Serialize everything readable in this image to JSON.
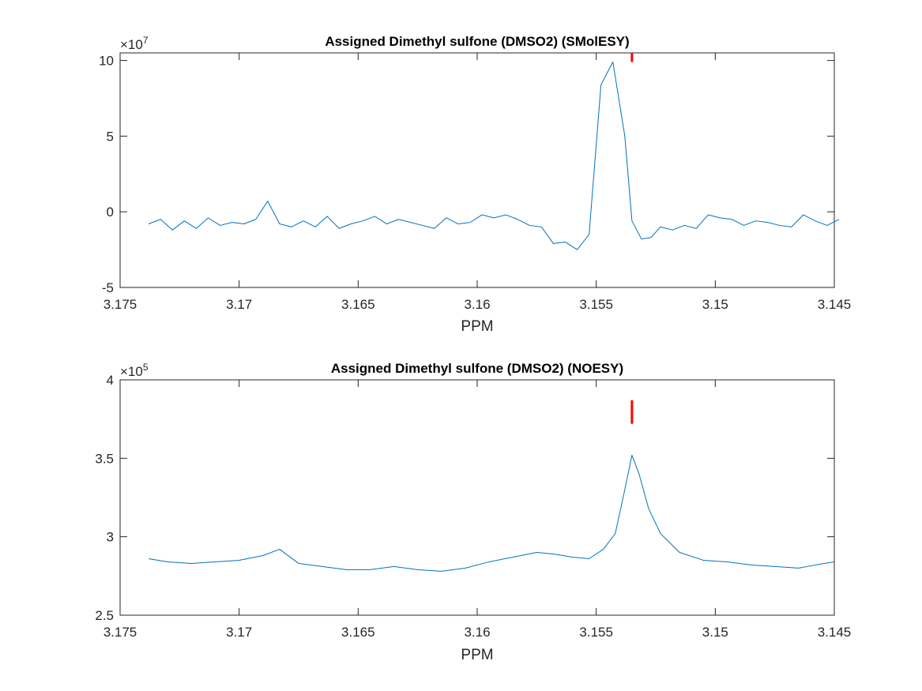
{
  "chart_data": [
    {
      "type": "line",
      "title": "Assigned Dimethyl sulfone (DMSO2) (SMolESY)",
      "xlabel": "PPM",
      "ylabel": "",
      "y_exponent_base": "×10",
      "y_exponent_power": "7",
      "xlim": [
        3.175,
        3.145
      ],
      "x_reversed": true,
      "ylim": [
        -5,
        10.5
      ],
      "x_ticks": [
        3.175,
        3.17,
        3.165,
        3.16,
        3.155,
        3.15,
        3.145
      ],
      "x_tick_labels": [
        "3.175",
        "3.17",
        "3.165",
        "3.16",
        "3.155",
        "3.15",
        "3.145"
      ],
      "y_ticks": [
        -5,
        0,
        5,
        10
      ],
      "y_tick_labels": [
        "-5",
        "0",
        "5",
        "10"
      ],
      "line_color": "#0072BD",
      "marker_color": "#FF0000",
      "assignment_marker": {
        "x": 3.1535,
        "y_from": 9.9,
        "y_to": 10.9
      },
      "series": [
        {
          "x": [
            3.1738,
            3.1733,
            3.1728,
            3.1723,
            3.1718,
            3.1713,
            3.1708,
            3.1703,
            3.1698,
            3.1693,
            3.1688,
            3.1683,
            3.1678,
            3.1673,
            3.1668,
            3.1663,
            3.1658,
            3.1653,
            3.1648,
            3.1643,
            3.1638,
            3.1633,
            3.1628,
            3.1623,
            3.1618,
            3.1613,
            3.1608,
            3.1603,
            3.1598,
            3.1593,
            3.1588,
            3.1583,
            3.1578,
            3.1573,
            3.1568,
            3.1563,
            3.1558,
            3.1553,
            3.1548,
            3.1543,
            3.1538,
            3.1535,
            3.1531,
            3.1527,
            3.1523,
            3.1518,
            3.1513,
            3.1508,
            3.1503,
            3.1498,
            3.1493,
            3.1488,
            3.1483,
            3.1478,
            3.1473,
            3.1468,
            3.1463,
            3.1458,
            3.1453,
            3.1448
          ],
          "y": [
            -0.8,
            -0.5,
            -1.2,
            -0.6,
            -1.1,
            -0.4,
            -0.9,
            -0.7,
            -0.8,
            -0.5,
            0.7,
            -0.8,
            -1.0,
            -0.6,
            -1.0,
            -0.3,
            -1.1,
            -0.8,
            -0.6,
            -0.3,
            -0.8,
            -0.5,
            -0.7,
            -0.9,
            -1.1,
            -0.4,
            -0.8,
            -0.7,
            -0.2,
            -0.4,
            -0.2,
            -0.5,
            -0.9,
            -1.0,
            -2.1,
            -2.0,
            -2.5,
            -1.5,
            8.4,
            9.9,
            5.0,
            -0.6,
            -1.8,
            -1.7,
            -1.0,
            -1.2,
            -0.9,
            -1.1,
            -0.2,
            -0.4,
            -0.5,
            -0.9,
            -0.6,
            -0.7,
            -0.9,
            -1.0,
            -0.2,
            -0.6,
            -0.9,
            -0.5
          ]
        }
      ]
    },
    {
      "type": "line",
      "title": "Assigned Dimethyl sulfone (DMSO2) (NOESY)",
      "xlabel": "PPM",
      "ylabel": "",
      "y_exponent_base": "×10",
      "y_exponent_power": "5",
      "xlim": [
        3.175,
        3.145
      ],
      "x_reversed": true,
      "ylim": [
        2.5,
        4
      ],
      "x_ticks": [
        3.175,
        3.17,
        3.165,
        3.16,
        3.155,
        3.15,
        3.145
      ],
      "x_tick_labels": [
        "3.175",
        "3.17",
        "3.165",
        "3.16",
        "3.155",
        "3.15",
        "3.145"
      ],
      "y_ticks": [
        2.5,
        3,
        3.5,
        4
      ],
      "y_tick_labels": [
        "2.5",
        "3",
        "3.5",
        "4"
      ],
      "line_color": "#0072BD",
      "marker_color": "#FF0000",
      "assignment_marker": {
        "x": 3.1535,
        "y_from": 3.72,
        "y_to": 3.87
      },
      "series": [
        {
          "x": [
            3.1738,
            3.173,
            3.172,
            3.171,
            3.17,
            3.169,
            3.1683,
            3.1675,
            3.1665,
            3.1655,
            3.1645,
            3.1635,
            3.1625,
            3.1615,
            3.1605,
            3.1595,
            3.1585,
            3.1575,
            3.1568,
            3.156,
            3.1553,
            3.1547,
            3.1542,
            3.1538,
            3.1535,
            3.1532,
            3.1528,
            3.1523,
            3.1515,
            3.1505,
            3.1495,
            3.1485,
            3.1475,
            3.1465,
            3.1458,
            3.145
          ],
          "y": [
            2.86,
            2.84,
            2.83,
            2.84,
            2.85,
            2.88,
            2.92,
            2.83,
            2.81,
            2.79,
            2.79,
            2.81,
            2.79,
            2.78,
            2.8,
            2.84,
            2.87,
            2.9,
            2.89,
            2.87,
            2.86,
            2.92,
            3.02,
            3.3,
            3.52,
            3.4,
            3.18,
            3.02,
            2.9,
            2.85,
            2.84,
            2.82,
            2.81,
            2.8,
            2.82,
            2.84
          ]
        }
      ]
    }
  ]
}
